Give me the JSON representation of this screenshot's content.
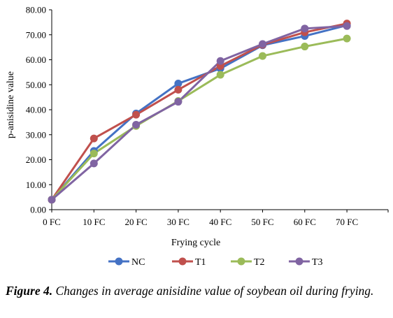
{
  "chart_data": {
    "type": "line",
    "title": "",
    "xlabel": "Frying cycle",
    "ylabel": "p-anisidine value",
    "categories": [
      "0 FC",
      "10 FC",
      "20 FC",
      "30 FC",
      "40 FC",
      "50 FC",
      "60 FC",
      "70 FC"
    ],
    "ylim": [
      0,
      80
    ],
    "yticks": [
      "0.00",
      "10.00",
      "20.00",
      "30.00",
      "40.00",
      "50.00",
      "60.00",
      "70.00",
      "80.00"
    ],
    "grid": false,
    "legend_position": "bottom",
    "series": [
      {
        "name": "NC",
        "color": "#4472c4",
        "values": [
          4.0,
          23.5,
          38.5,
          50.5,
          56.5,
          65.8,
          69.5,
          73.8
        ]
      },
      {
        "name": "T1",
        "color": "#c0504d",
        "values": [
          4.0,
          28.5,
          38.0,
          48.0,
          57.5,
          66.0,
          71.0,
          74.5
        ]
      },
      {
        "name": "T2",
        "color": "#9bbb59",
        "values": [
          4.0,
          22.5,
          33.5,
          43.5,
          54.0,
          61.5,
          65.3,
          68.5
        ]
      },
      {
        "name": "T3",
        "color": "#8064a2",
        "values": [
          4.0,
          18.5,
          34.0,
          43.2,
          59.5,
          66.3,
          72.5,
          73.5
        ]
      }
    ]
  },
  "caption": {
    "label": "Figure 4.",
    "text": "Changes in average anisidine value of soybean oil during frying."
  }
}
